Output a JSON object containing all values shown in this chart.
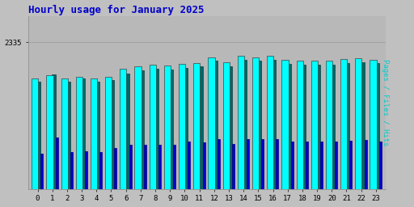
{
  "title": "Hourly usage for January 2025",
  "title_color": "#0000cc",
  "title_fontsize": 9,
  "hours": [
    0,
    1,
    2,
    3,
    4,
    5,
    6,
    7,
    8,
    9,
    10,
    11,
    12,
    13,
    14,
    15,
    16,
    17,
    18,
    19,
    20,
    21,
    22,
    23
  ],
  "pages": [
    1760,
    1810,
    1760,
    1790,
    1760,
    1790,
    1920,
    1960,
    1980,
    1970,
    1990,
    2010,
    2090,
    2020,
    2120,
    2090,
    2120,
    2060,
    2050,
    2050,
    2050,
    2070,
    2080,
    2060
  ],
  "files": [
    1710,
    1820,
    1710,
    1760,
    1710,
    1740,
    1840,
    1890,
    1910,
    1900,
    1930,
    1950,
    2040,
    1960,
    2060,
    2040,
    2060,
    1990,
    1980,
    1980,
    1980,
    2000,
    2020,
    2000
  ],
  "hits": [
    560,
    820,
    590,
    600,
    590,
    650,
    700,
    710,
    700,
    700,
    760,
    740,
    800,
    720,
    800,
    790,
    800,
    760,
    760,
    760,
    760,
    770,
    780,
    760
  ],
  "pages_color": "#00ffff",
  "files_color": "#006666",
  "hits_color": "#0000cc",
  "ylabel": "Pages / Files / Hits",
  "ylabel_pages_color": "#00cccc",
  "ylabel_files_color": "#006666",
  "ylabel_hits_color": "#0000cc",
  "background_color": "#c0c0c0",
  "plot_background": "#b8b8b8",
  "ylim_max": 2335,
  "ytick_label": "2335",
  "font_family": "monospace",
  "bar_edge_color": "#404040",
  "bar_linewidth": 0.5
}
